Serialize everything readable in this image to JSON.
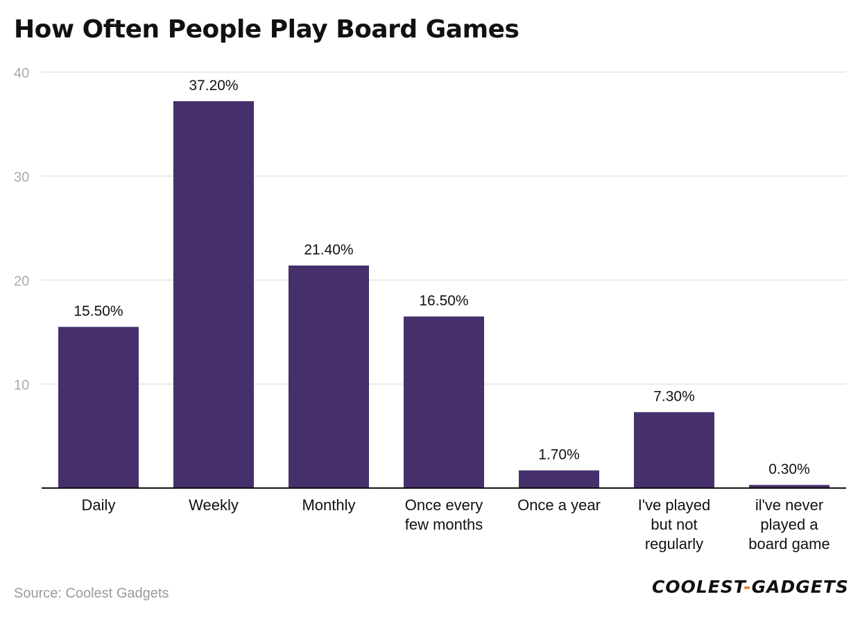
{
  "chart_data": {
    "type": "bar",
    "title": "How Often People Play Board Games",
    "categories": [
      [
        "Daily"
      ],
      [
        "Weekly"
      ],
      [
        "Monthly"
      ],
      [
        "Once every",
        "few months"
      ],
      [
        "Once a year"
      ],
      [
        "I've played",
        "but not",
        "regularly"
      ],
      [
        "il've never",
        "played a",
        "board game"
      ]
    ],
    "values": [
      15.5,
      37.2,
      21.4,
      16.5,
      1.7,
      7.3,
      0.3
    ],
    "value_labels": [
      "15.50%",
      "37.20%",
      "21.40%",
      "16.50%",
      "1.70%",
      "7.30%",
      "0.30%"
    ],
    "yticks": [
      10,
      20,
      30,
      40
    ],
    "ylim": [
      0,
      40
    ],
    "grid": true,
    "bar_color": "#45306b"
  },
  "source": "Source: Coolest Gadgets",
  "brand": {
    "part1": "COOLEST",
    "dash": "-",
    "part2": "GADGETS",
    "accent_color": "#e87722"
  }
}
